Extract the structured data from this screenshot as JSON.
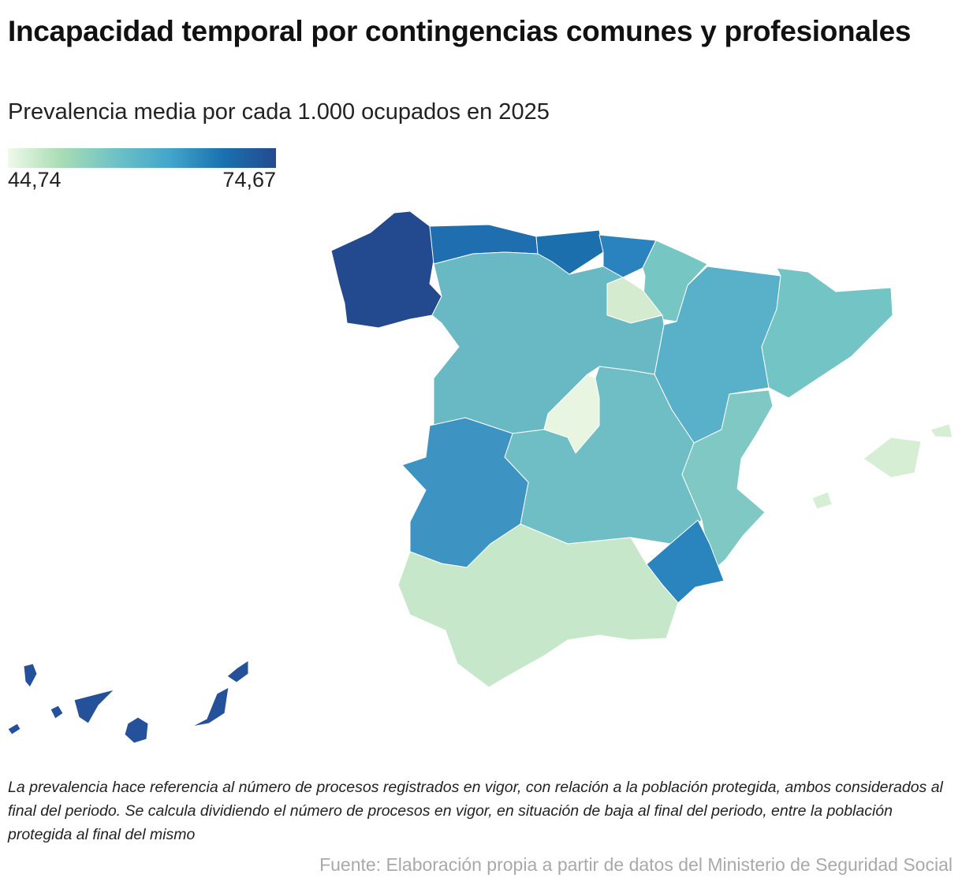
{
  "title": "Incapacidad temporal por contingencias comunes y profesionales",
  "subtitle": "Prevalencia media por cada 1.000 ocupados en 2025",
  "legend": {
    "min_label": "44,74",
    "max_label": "74,67",
    "colors": [
      "#f0f9e8",
      "#a8dcb5",
      "#6fc2c6",
      "#44a6cc",
      "#1a72b0",
      "#244a8f"
    ]
  },
  "regions": [
    {
      "name": "Galicia",
      "color": "#234a8f"
    },
    {
      "name": "Asturias",
      "color": "#1f6fb0"
    },
    {
      "name": "Cantabria",
      "color": "#1b6fad"
    },
    {
      "name": "País Vasco",
      "color": "#2a82be"
    },
    {
      "name": "Navarra",
      "color": "#76c6c4"
    },
    {
      "name": "La Rioja",
      "color": "#d4ebd0"
    },
    {
      "name": "Aragón",
      "color": "#58b0c9"
    },
    {
      "name": "Cataluña",
      "color": "#72c5c4"
    },
    {
      "name": "Castilla y León",
      "color": "#69b9c5"
    },
    {
      "name": "Madrid",
      "color": "#e8f5e0"
    },
    {
      "name": "Castilla-La Mancha",
      "color": "#6fbdc5"
    },
    {
      "name": "Extremadura",
      "color": "#3d94c2"
    },
    {
      "name": "Comunidad Valenciana",
      "color": "#7fc8c4"
    },
    {
      "name": "Murcia",
      "color": "#2a84bd"
    },
    {
      "name": "Andalucía",
      "color": "#c6e7c9"
    },
    {
      "name": "Baleares",
      "color": "#d6eed3"
    },
    {
      "name": "Canarias",
      "color": "#24519a"
    }
  ],
  "note": "La prevalencia hace referencia al número de procesos registrados en vigor, con relación a la población protegida, ambos considerados al final del periodo. Se calcula dividiendo el número de procesos en vigor, en situación de baja al final del periodo, entre la población protegida al final del mismo",
  "source": "Fuente: Elaboración propia a partir de datos del Ministerio de Seguridad Social"
}
